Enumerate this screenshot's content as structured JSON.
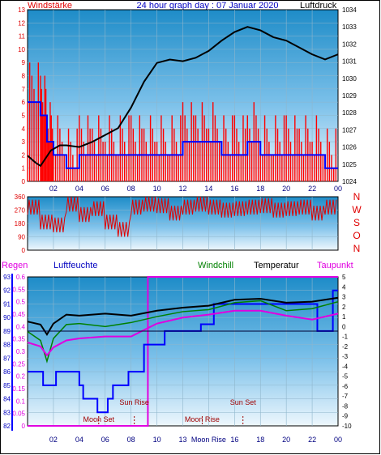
{
  "header": {
    "left": "Windstärke",
    "center": "24 hour graph day : 07 Januar 2020",
    "right": "Luftdruck"
  },
  "x_ticks": [
    "02",
    "04",
    "06",
    "08",
    "10",
    "12",
    "14",
    "16",
    "18",
    "20",
    "22",
    "00"
  ],
  "x_ticks_bottom": [
    "02",
    "04",
    "06",
    "08",
    "10",
    "13",
    "Moon Rise",
    "16",
    "18",
    "20",
    "22",
    "00"
  ],
  "panel1": {
    "left_ticks": [
      "0",
      "1",
      "2",
      "3",
      "4",
      "5",
      "6",
      "7",
      "8",
      "9",
      "10",
      "11",
      "12",
      "13"
    ],
    "right_ticks": [
      "1024",
      "1025",
      "1026",
      "1027",
      "1028",
      "1029",
      "1030",
      "1031",
      "1032",
      "1033",
      "1034"
    ]
  },
  "panel2": {
    "left_ticks": [
      "0",
      "90",
      "180",
      "270",
      "360"
    ],
    "right_letters": [
      "N",
      "W",
      "S",
      "O",
      "N"
    ]
  },
  "panel3": {
    "labels": {
      "regen": "Regen",
      "luftfeuchte": "Luftfeuchte",
      "windchill": "Windchill",
      "temperatur": "Temperatur",
      "taupunkt": "Taupunkt"
    },
    "humidity_ticks": [
      "82",
      "83",
      "84",
      "85",
      "86",
      "87",
      "88",
      "89",
      "90",
      "91",
      "92",
      "93"
    ],
    "rain_ticks": [
      "0",
      "0.05",
      "0.1",
      "0.15",
      "0.2",
      "0.25",
      "0.3",
      "0.35",
      "0.4",
      "0.45",
      "0.5",
      "0.55",
      "0.6"
    ],
    "temp_ticks": [
      "-10",
      "-9",
      "-8",
      "-7",
      "-6",
      "-5",
      "-4",
      "-3",
      "-2",
      "-1",
      "0",
      "1",
      "2",
      "3",
      "4",
      "5"
    ],
    "annotations": [
      {
        "text": "Moon Set",
        "x": 5.5
      },
      {
        "text": "Sun Rise",
        "x": 8.25
      },
      {
        "text": "Moon Rise",
        "x": 13.5
      },
      {
        "text": "Sun Set",
        "x": 16.65
      }
    ]
  },
  "chart_data": [
    {
      "type": "line",
      "title": "24 hour graph day : 07 Januar 2020",
      "series": [
        {
          "name": "Windstärke",
          "axis": "left",
          "ylim": [
            0,
            13
          ],
          "x": [
            0,
            1,
            1.5,
            2,
            3,
            4,
            5,
            6,
            7,
            8,
            9,
            10,
            11,
            12,
            13,
            14,
            15,
            16,
            17,
            18,
            19,
            20,
            21,
            22,
            23,
            24
          ],
          "values": [
            6,
            5,
            3,
            2,
            1,
            2,
            2,
            2,
            2,
            2,
            2,
            2,
            2,
            3,
            3,
            3,
            2,
            2,
            3,
            2,
            2,
            2,
            2,
            2,
            1,
            1
          ]
        },
        {
          "name": "Luftdruck",
          "axis": "right",
          "ylim": [
            1024,
            1034
          ],
          "x": [
            0,
            0.6,
            1,
            1.8,
            2.5,
            3,
            4,
            5,
            6,
            7,
            8,
            9,
            10,
            11,
            12,
            13,
            14,
            15,
            16,
            17,
            18,
            19,
            20,
            21,
            22,
            23,
            24
          ],
          "values": [
            1025.5,
            1025.1,
            1024.9,
            1025.8,
            1026.1,
            1026.1,
            1026.0,
            1026.3,
            1026.7,
            1027.1,
            1028.3,
            1029.8,
            1030.9,
            1031.1,
            1031.0,
            1031.2,
            1031.6,
            1032.2,
            1032.7,
            1033.0,
            1032.8,
            1032.4,
            1032.2,
            1031.8,
            1031.4,
            1031.1,
            1031.4
          ]
        }
      ]
    },
    {
      "type": "scatter",
      "series": [
        {
          "name": "Windrichtung",
          "ylim": [
            0,
            360
          ],
          "x": [
            0,
            1,
            2,
            3,
            4,
            5,
            6,
            7,
            8,
            9,
            10,
            11,
            12,
            13,
            14,
            15,
            16,
            17,
            18,
            19,
            20,
            21,
            22,
            23,
            24
          ],
          "values": [
            300,
            200,
            180,
            320,
            250,
            290,
            200,
            150,
            300,
            320,
            310,
            260,
            300,
            320,
            300,
            280,
            290,
            300,
            310,
            280,
            290,
            300,
            260,
            300,
            310
          ]
        }
      ]
    },
    {
      "type": "line",
      "series": [
        {
          "name": "Luftfeuchte",
          "axis": "left",
          "ylim": [
            82,
            93
          ],
          "x": [
            0,
            1,
            1.2,
            2,
            2.2,
            3.4,
            4,
            4.3,
            5,
            5.4,
            6,
            6.2,
            6.6,
            7.4,
            7.8,
            9,
            10,
            10.6,
            12,
            13,
            13.4,
            14,
            14.4,
            15,
            22,
            22.4,
            23,
            23.6,
            24
          ],
          "values": [
            86,
            86,
            85,
            85,
            86,
            86,
            85,
            84,
            84,
            83,
            83,
            84,
            85,
            85,
            86,
            88,
            88,
            89,
            89,
            89,
            89.5,
            89.5,
            91,
            91,
            91,
            89,
            89,
            92,
            92
          ]
        },
        {
          "name": "Regen",
          "axis": "left2",
          "ylim": [
            0,
            0.6
          ],
          "x": [
            0,
            9.2,
            9.3,
            24
          ],
          "values": [
            0,
            0,
            0.6,
            0.6
          ]
        },
        {
          "name": "Temperatur",
          "axis": "right",
          "ylim": [
            -10,
            5
          ],
          "x": [
            0,
            1,
            1.5,
            2,
            3,
            4,
            6,
            8,
            10,
            12,
            14,
            16,
            18,
            20,
            22,
            24
          ],
          "values": [
            0.5,
            0.2,
            -0.8,
            0.3,
            1.2,
            1.1,
            1.3,
            1.1,
            1.6,
            1.9,
            2.1,
            2.7,
            2.8,
            2.4,
            2.5,
            2.9
          ]
        },
        {
          "name": "Windchill",
          "axis": "right",
          "ylim": [
            -10,
            5
          ],
          "x": [
            0,
            1,
            1.5,
            2,
            3,
            4,
            6,
            8,
            10,
            12,
            14,
            16,
            18,
            20,
            22,
            24
          ],
          "values": [
            -0.5,
            -1.4,
            -3.5,
            -1.2,
            0.2,
            0.3,
            0.0,
            0.4,
            1.0,
            1.5,
            1.7,
            2.4,
            2.6,
            1.6,
            1.8,
            2.5
          ]
        },
        {
          "name": "Taupunkt",
          "axis": "right",
          "ylim": [
            -10,
            5
          ],
          "x": [
            0,
            1,
            1.5,
            2,
            3,
            4,
            6,
            8,
            10,
            12,
            14,
            16,
            18,
            20,
            22,
            24
          ],
          "values": [
            -1.6,
            -2.0,
            -2.9,
            -2.1,
            -1.4,
            -1.2,
            -1.0,
            -1.0,
            0.3,
            0.9,
            1.2,
            1.6,
            1.6,
            1.1,
            0.7,
            1.3
          ]
        }
      ]
    }
  ]
}
